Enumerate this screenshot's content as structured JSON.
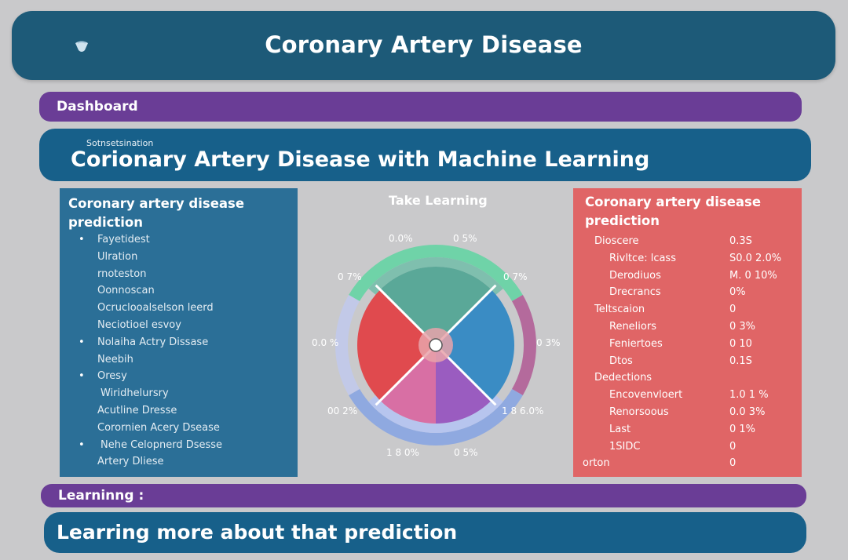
{
  "header": {
    "title": "Coronary Artery Disease"
  },
  "dashboard_bar": {
    "label": "Dashboard"
  },
  "hero": {
    "small_text": "Sotnsetsination",
    "title": "Corionary Artery Disease with Machine Learning"
  },
  "left_panel": {
    "title": "Coronary artery disease prediction",
    "items": [
      {
        "text": "Fayetidest",
        "bullet": true,
        "indent": 1
      },
      {
        "text": "Ulration",
        "bullet": false,
        "indent": 1
      },
      {
        "text": "rnoteston",
        "bullet": false,
        "indent": 1
      },
      {
        "text": "Oonnoscan",
        "bullet": false,
        "indent": 1
      },
      {
        "text": "Ocruclooalselson leerd",
        "bullet": false,
        "indent": 1
      },
      {
        "text": "Neciotioel esvoy",
        "bullet": false,
        "indent": 1
      },
      {
        "text": "Nolaiha Actry Dissase",
        "bullet": true,
        "indent": 1
      },
      {
        "text": "Neebih",
        "bullet": false,
        "indent": 1
      },
      {
        "text": "Oresy",
        "bullet": true,
        "indent": 1
      },
      {
        "text": "Wiridhelursry",
        "bullet": false,
        "indent": 2
      },
      {
        "text": "Acutline Dresse",
        "bullet": false,
        "indent": 1
      },
      {
        "text": "Corornien Acery Dsease",
        "bullet": false,
        "indent": 1
      },
      {
        "text": "Nehe Celopnerd Dsesse",
        "bullet": true,
        "indent": 2
      },
      {
        "text": "Artery Dliese",
        "bullet": false,
        "indent": 1
      }
    ]
  },
  "center_chart": {
    "title": "Take Learning",
    "labels": [
      "0.0%",
      "0 5%",
      "0 7%",
      "0 7%",
      "0.0 %",
      "0 3%",
      "00 2%",
      "1 8 6.0%",
      "1 8 0%",
      "0 5%"
    ],
    "colors": {
      "green": "#6fd3a8",
      "teal": "#5aa898",
      "blue": "#3a8cc4",
      "red": "#e04a4e",
      "pink": "#d86fa4",
      "purple": "#9a5cc0",
      "ring": "#8fa9e0"
    }
  },
  "right_panel": {
    "title": "Coronary artery disease prediction",
    "rows": [
      {
        "label": "Dioscere",
        "value": "0.3S",
        "indent": 1
      },
      {
        "label": "Rivltce: lcass",
        "value": "S0.0 2.0%",
        "indent": 2
      },
      {
        "label": "Derodiuos",
        "value": "M. 0 10%",
        "indent": 2
      },
      {
        "label": "Drecrancs",
        "value": "0%",
        "indent": 2
      },
      {
        "label": "Teltscaion",
        "value": "0",
        "indent": 1
      },
      {
        "label": "Reneliors",
        "value": "0 3%",
        "indent": 2
      },
      {
        "label": "Feniertoes",
        "value": "0 10",
        "indent": 2
      },
      {
        "label": "Dtos",
        "value": "0.1S",
        "indent": 2
      },
      {
        "label": "Dedections",
        "value": "",
        "indent": 1
      },
      {
        "label": "Encovenvloert",
        "value": "1.0 1 %",
        "indent": 2
      },
      {
        "label": "Renorsoous",
        "value": "0.0 3%",
        "indent": 2
      },
      {
        "label": "Last",
        "value": "0 1%",
        "indent": 2
      },
      {
        "label": "1SIDC",
        "value": "0",
        "indent": 2
      },
      {
        "label": "orton",
        "value": "0",
        "indent": 0
      }
    ]
  },
  "learning_bar": {
    "label": "Learninng :"
  },
  "bottom": {
    "title": "Learring more about that prediction"
  }
}
